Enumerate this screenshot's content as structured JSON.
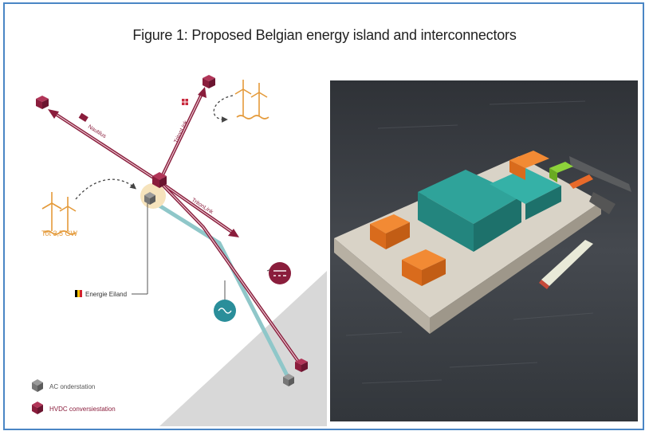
{
  "title": "Figure 1: Proposed Belgian energy island and interconnectors",
  "labels": {
    "nautilus": "Nautilus",
    "triton_link_north": "TritonLink",
    "triton_link_east": "TritonLink",
    "capacity": "Tot 3,5 GW",
    "island": "Energie Eiland"
  },
  "legend": {
    "ac": "AC onderstation",
    "hvdc": "HVDC conversiestation"
  },
  "colors": {
    "frame": "#4a86c5",
    "hvdc": "#8a1d3c",
    "ac_cable": "#8fc7c9",
    "turbine": "#e49a3a",
    "island_halo": "#f6e3bc",
    "sea_wedge": "#d8d8d8",
    "sea_photo": "#3e4248",
    "building_teal": "#2fa39a",
    "building_orange": "#ef7b24"
  }
}
